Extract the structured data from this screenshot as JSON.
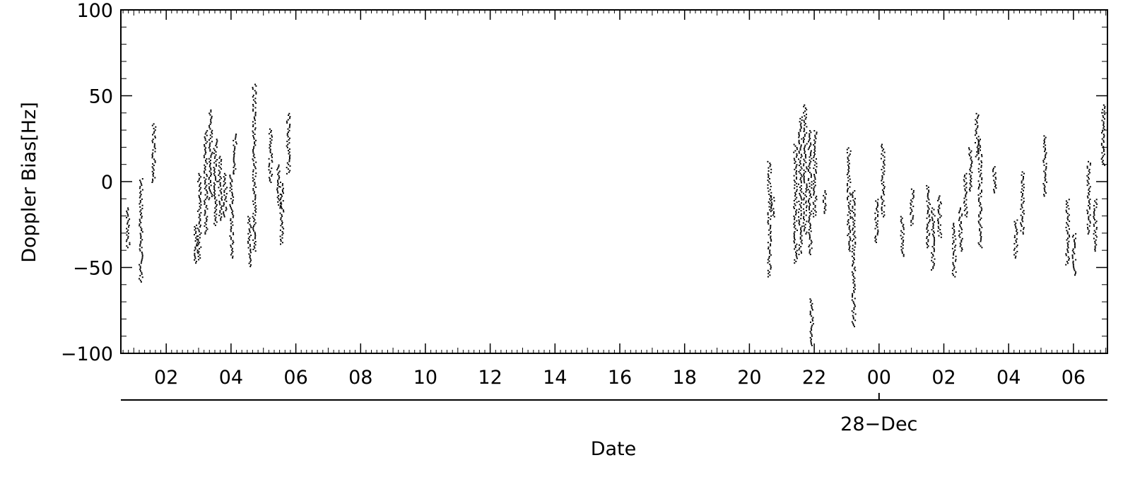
{
  "chart_data": {
    "type": "scatter",
    "title": "",
    "xlabel": "Date",
    "ylabel": "Doppler Bias[Hz]",
    "ylim": [
      -100,
      100
    ],
    "xlim_hours": [
      0.6,
      31.05
    ],
    "y_ticks": [
      100,
      50,
      0,
      -50,
      -100
    ],
    "y_tick_labels": [
      "100",
      "50",
      "0",
      "−50",
      "−100"
    ],
    "x_ticks": [
      {
        "h": 2,
        "label": "02"
      },
      {
        "h": 4,
        "label": "04"
      },
      {
        "h": 6,
        "label": "06"
      },
      {
        "h": 8,
        "label": "08"
      },
      {
        "h": 10,
        "label": "10"
      },
      {
        "h": 12,
        "label": "12"
      },
      {
        "h": 14,
        "label": "14"
      },
      {
        "h": 16,
        "label": "16"
      },
      {
        "h": 18,
        "label": "18"
      },
      {
        "h": 20,
        "label": "20"
      },
      {
        "h": 22,
        "label": "22"
      },
      {
        "h": 24,
        "label": "00"
      },
      {
        "h": 26,
        "label": "02"
      },
      {
        "h": 28,
        "label": "04"
      },
      {
        "h": 30,
        "label": "06"
      }
    ],
    "date_axis": {
      "label": "28−Dec",
      "at_hour": 24
    },
    "grid": false,
    "series": [
      {
        "clusters": [
          {
            "x": 0.8,
            "y_min": -38,
            "y_max": -15
          },
          {
            "x": 1.2,
            "y_min": -58,
            "y_max": 2
          },
          {
            "x": 1.6,
            "y_min": 0,
            "y_max": 34
          },
          {
            "x": 2.9,
            "y_min": -47,
            "y_max": -25
          },
          {
            "x": 3.0,
            "y_min": -45,
            "y_max": 5
          },
          {
            "x": 3.2,
            "y_min": -30,
            "y_max": 30
          },
          {
            "x": 3.35,
            "y_min": -10,
            "y_max": 42
          },
          {
            "x": 3.5,
            "y_min": -25,
            "y_max": 25
          },
          {
            "x": 3.65,
            "y_min": -22,
            "y_max": 15
          },
          {
            "x": 3.8,
            "y_min": -20,
            "y_max": 5
          },
          {
            "x": 4.0,
            "y_min": -44,
            "y_max": 5
          },
          {
            "x": 4.1,
            "y_min": 5,
            "y_max": 28
          },
          {
            "x": 4.55,
            "y_min": -49,
            "y_max": -20
          },
          {
            "x": 4.7,
            "y_min": -40,
            "y_max": 57
          },
          {
            "x": 5.2,
            "y_min": 0,
            "y_max": 31
          },
          {
            "x": 5.45,
            "y_min": -15,
            "y_max": 10
          },
          {
            "x": 5.55,
            "y_min": -36,
            "y_max": 0
          },
          {
            "x": 5.75,
            "y_min": 5,
            "y_max": 40
          },
          {
            "x": 20.6,
            "y_min": -55,
            "y_max": 12
          },
          {
            "x": 20.7,
            "y_min": -20,
            "y_max": -8
          },
          {
            "x": 21.4,
            "y_min": -47,
            "y_max": 22
          },
          {
            "x": 21.55,
            "y_min": -42,
            "y_max": 38
          },
          {
            "x": 21.7,
            "y_min": -30,
            "y_max": 45
          },
          {
            "x": 21.85,
            "y_min": -42,
            "y_max": 30
          },
          {
            "x": 21.9,
            "y_min": -95,
            "y_max": -68
          },
          {
            "x": 22.0,
            "y_min": -20,
            "y_max": 30
          },
          {
            "x": 22.3,
            "y_min": -18,
            "y_max": -5
          },
          {
            "x": 23.05,
            "y_min": -40,
            "y_max": 20
          },
          {
            "x": 23.2,
            "y_min": -84,
            "y_max": -5
          },
          {
            "x": 23.9,
            "y_min": -35,
            "y_max": -10
          },
          {
            "x": 24.1,
            "y_min": -20,
            "y_max": 22
          },
          {
            "x": 24.7,
            "y_min": -43,
            "y_max": -20
          },
          {
            "x": 25.0,
            "y_min": -25,
            "y_max": -4
          },
          {
            "x": 25.5,
            "y_min": -38,
            "y_max": -2
          },
          {
            "x": 25.65,
            "y_min": -51,
            "y_max": -15
          },
          {
            "x": 25.85,
            "y_min": -32,
            "y_max": -8
          },
          {
            "x": 26.3,
            "y_min": -55,
            "y_max": -24
          },
          {
            "x": 26.5,
            "y_min": -40,
            "y_max": -15
          },
          {
            "x": 26.65,
            "y_min": -20,
            "y_max": 5
          },
          {
            "x": 26.8,
            "y_min": -5,
            "y_max": 20
          },
          {
            "x": 27.0,
            "y_min": 15,
            "y_max": 40
          },
          {
            "x": 27.1,
            "y_min": -38,
            "y_max": 25
          },
          {
            "x": 27.55,
            "y_min": -6,
            "y_max": 9
          },
          {
            "x": 28.2,
            "y_min": -44,
            "y_max": -22
          },
          {
            "x": 28.4,
            "y_min": -30,
            "y_max": 6
          },
          {
            "x": 29.1,
            "y_min": -8,
            "y_max": 27
          },
          {
            "x": 29.8,
            "y_min": -48,
            "y_max": -10
          },
          {
            "x": 30.0,
            "y_min": -54,
            "y_max": -30
          },
          {
            "x": 30.45,
            "y_min": -30,
            "y_max": 12
          },
          {
            "x": 30.65,
            "y_min": -40,
            "y_max": -10
          },
          {
            "x": 30.9,
            "y_min": 10,
            "y_max": 45
          }
        ]
      }
    ]
  }
}
